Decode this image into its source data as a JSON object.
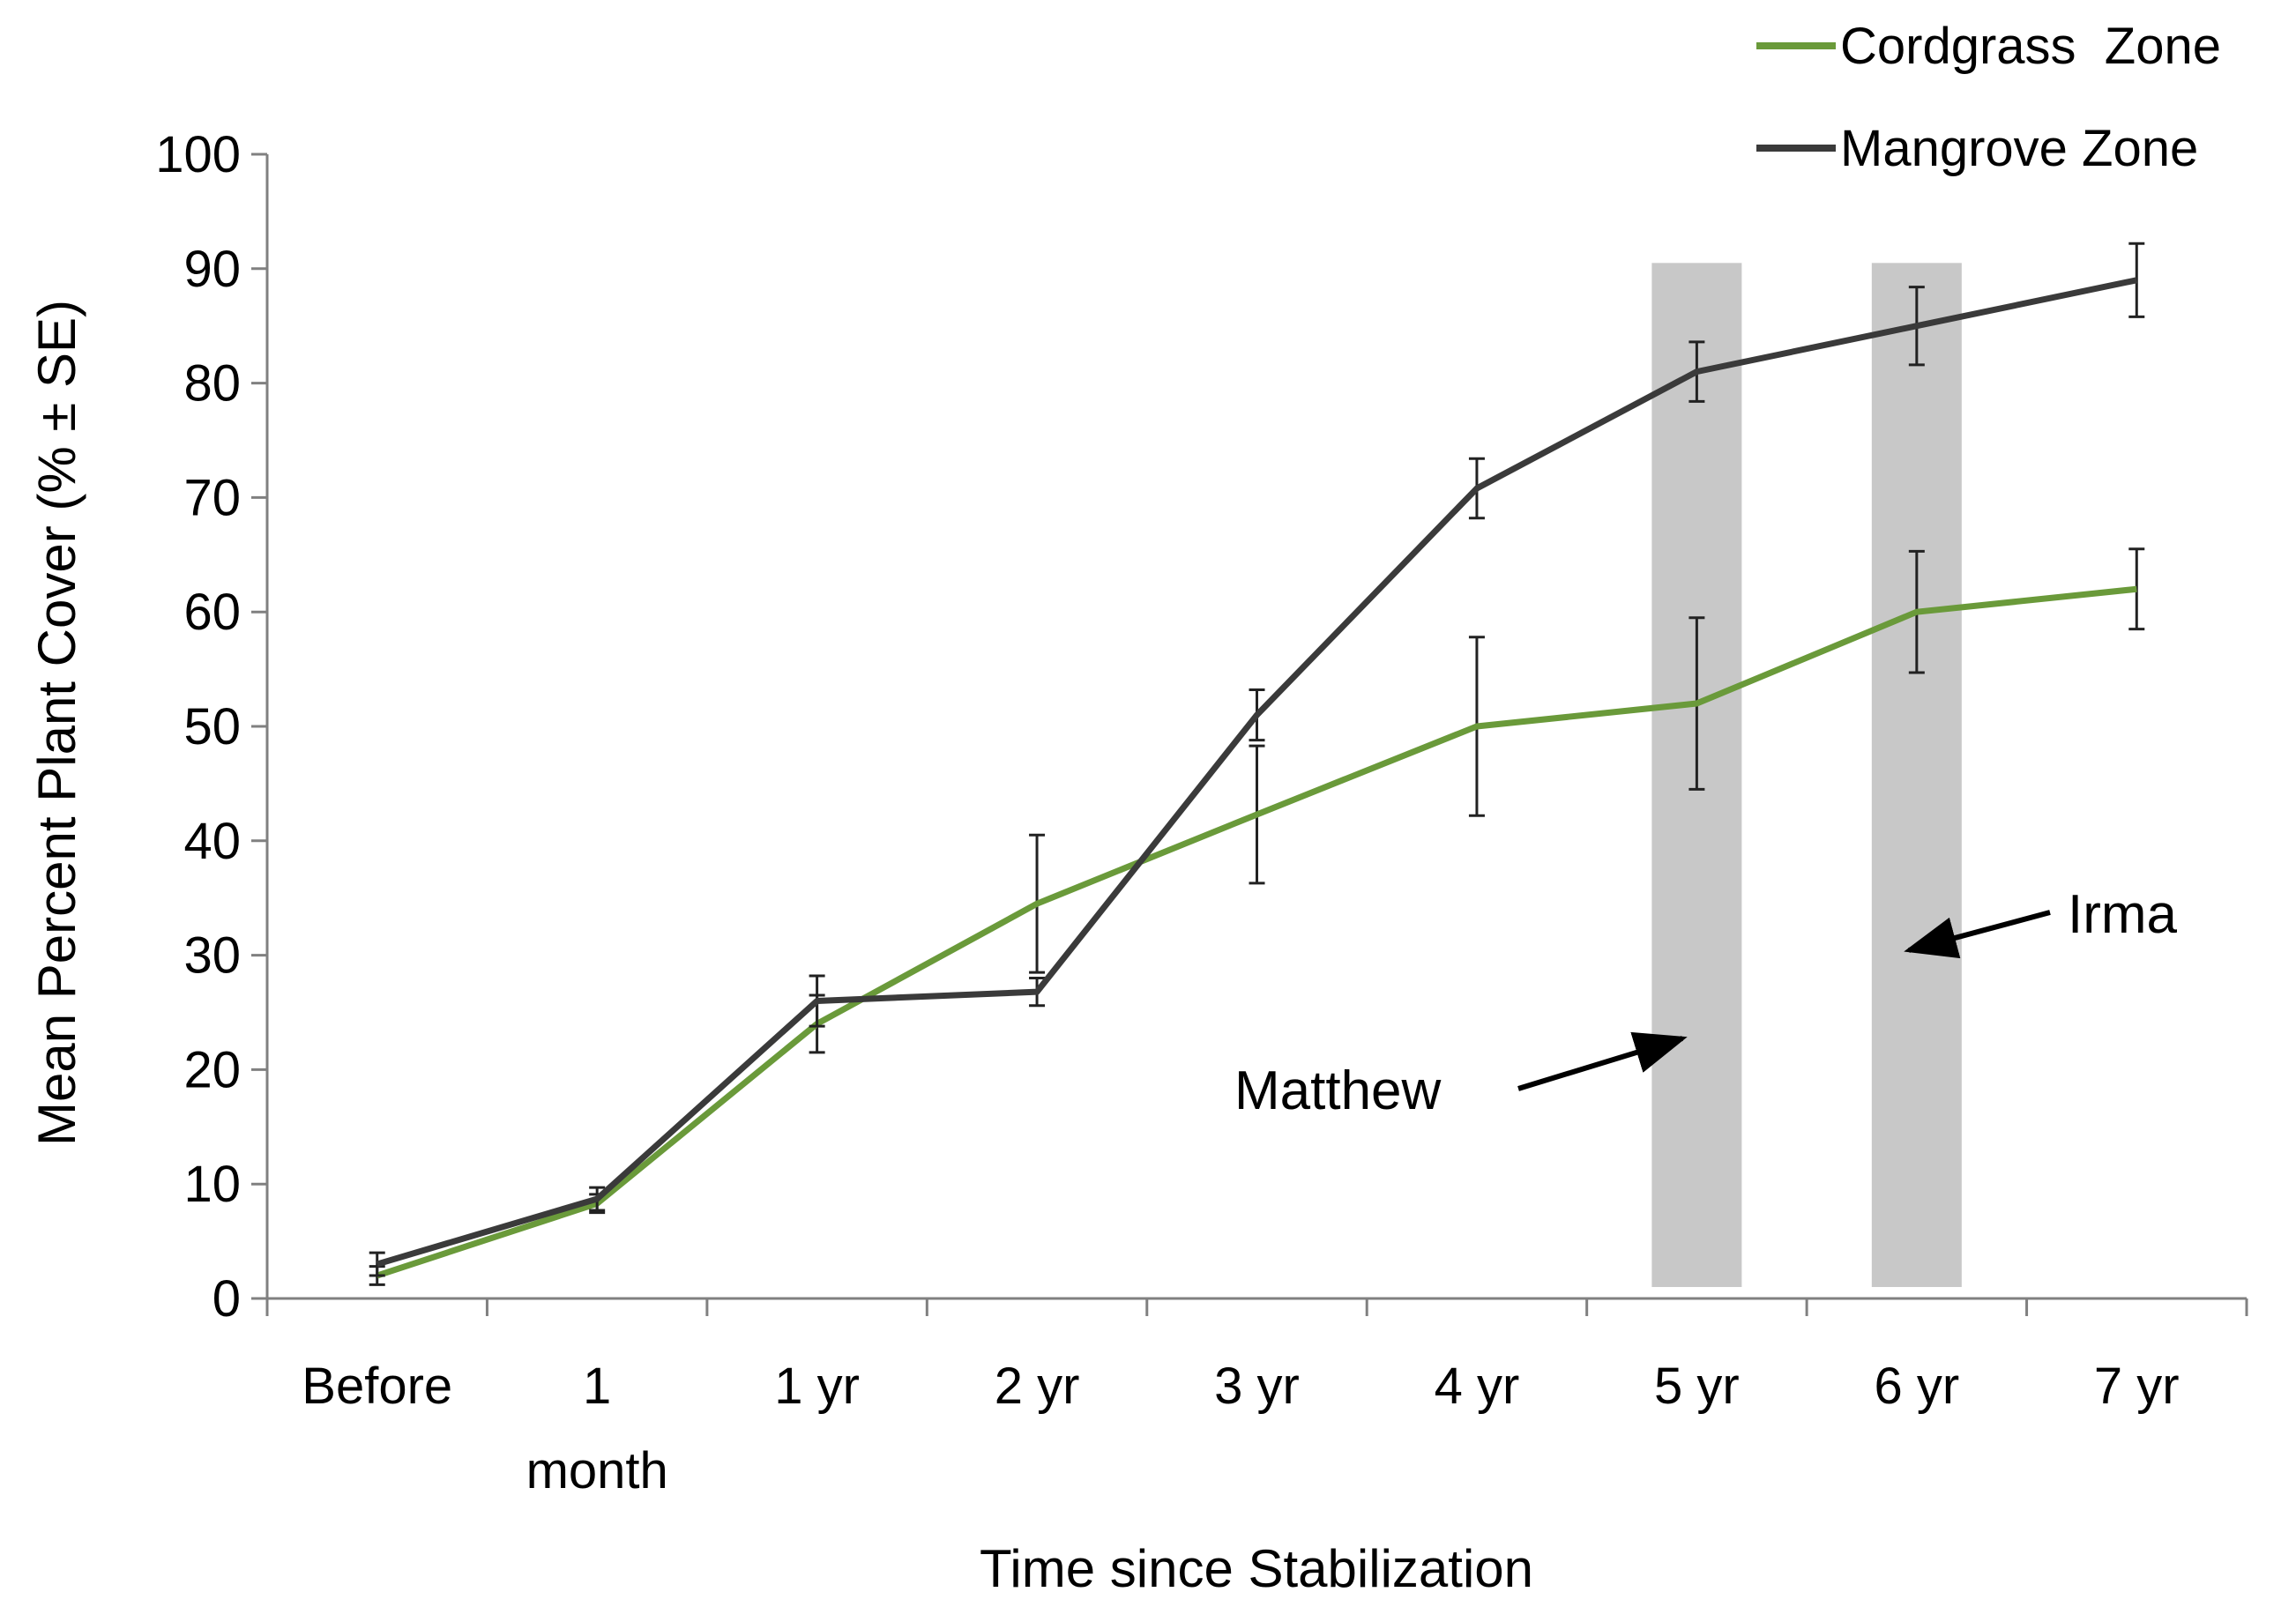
{
  "chart_data": {
    "type": "line",
    "title": "",
    "xlabel": "Time since Stabilization",
    "ylabel": "Mean Percent Plant Cover (% ± SE)",
    "ylim": [
      0,
      100
    ],
    "yticks": [
      0,
      10,
      20,
      30,
      40,
      50,
      60,
      70,
      80,
      90,
      100
    ],
    "grid": false,
    "legend_position": "top-right",
    "categories": [
      {
        "label": "Before"
      },
      {
        "label": "1",
        "label2": "month"
      },
      {
        "label": "1 yr"
      },
      {
        "label": "2 yr"
      },
      {
        "label": "3 yr"
      },
      {
        "label": "4 yr"
      },
      {
        "label": "5 yr"
      },
      {
        "label": "6 yr"
      },
      {
        "label": "7 yr"
      }
    ],
    "series": [
      {
        "name": "Cordgrass  Zone",
        "color": "#6a9a3a",
        "values": [
          2,
          8.3,
          24,
          34.5,
          42.3,
          50,
          52,
          60,
          62
        ],
        "errors": [
          0.8,
          0.8,
          2.5,
          6,
          6,
          7.8,
          7.5,
          5.3,
          3.5
        ]
      },
      {
        "name": "Mangrove Zone",
        "color": "#3a3a3a",
        "values": [
          3,
          8.7,
          26,
          26.8,
          51,
          70.8,
          81,
          85,
          89
        ],
        "errors": [
          1,
          1,
          2.2,
          1.2,
          2.2,
          2.6,
          2.6,
          3.4,
          3.2
        ]
      }
    ],
    "shaded_regions": [
      {
        "category_index": 6,
        "ylim": [
          1,
          90.5
        ],
        "color": "#c8c8c8"
      },
      {
        "category_index": 7,
        "ylim": [
          1,
          90.5
        ],
        "color": "#c8c8c8"
      }
    ],
    "annotations": [
      {
        "text": "Matthew",
        "points_to": "5 yr"
      },
      {
        "text": "Irma",
        "points_to": "6 yr"
      }
    ]
  }
}
